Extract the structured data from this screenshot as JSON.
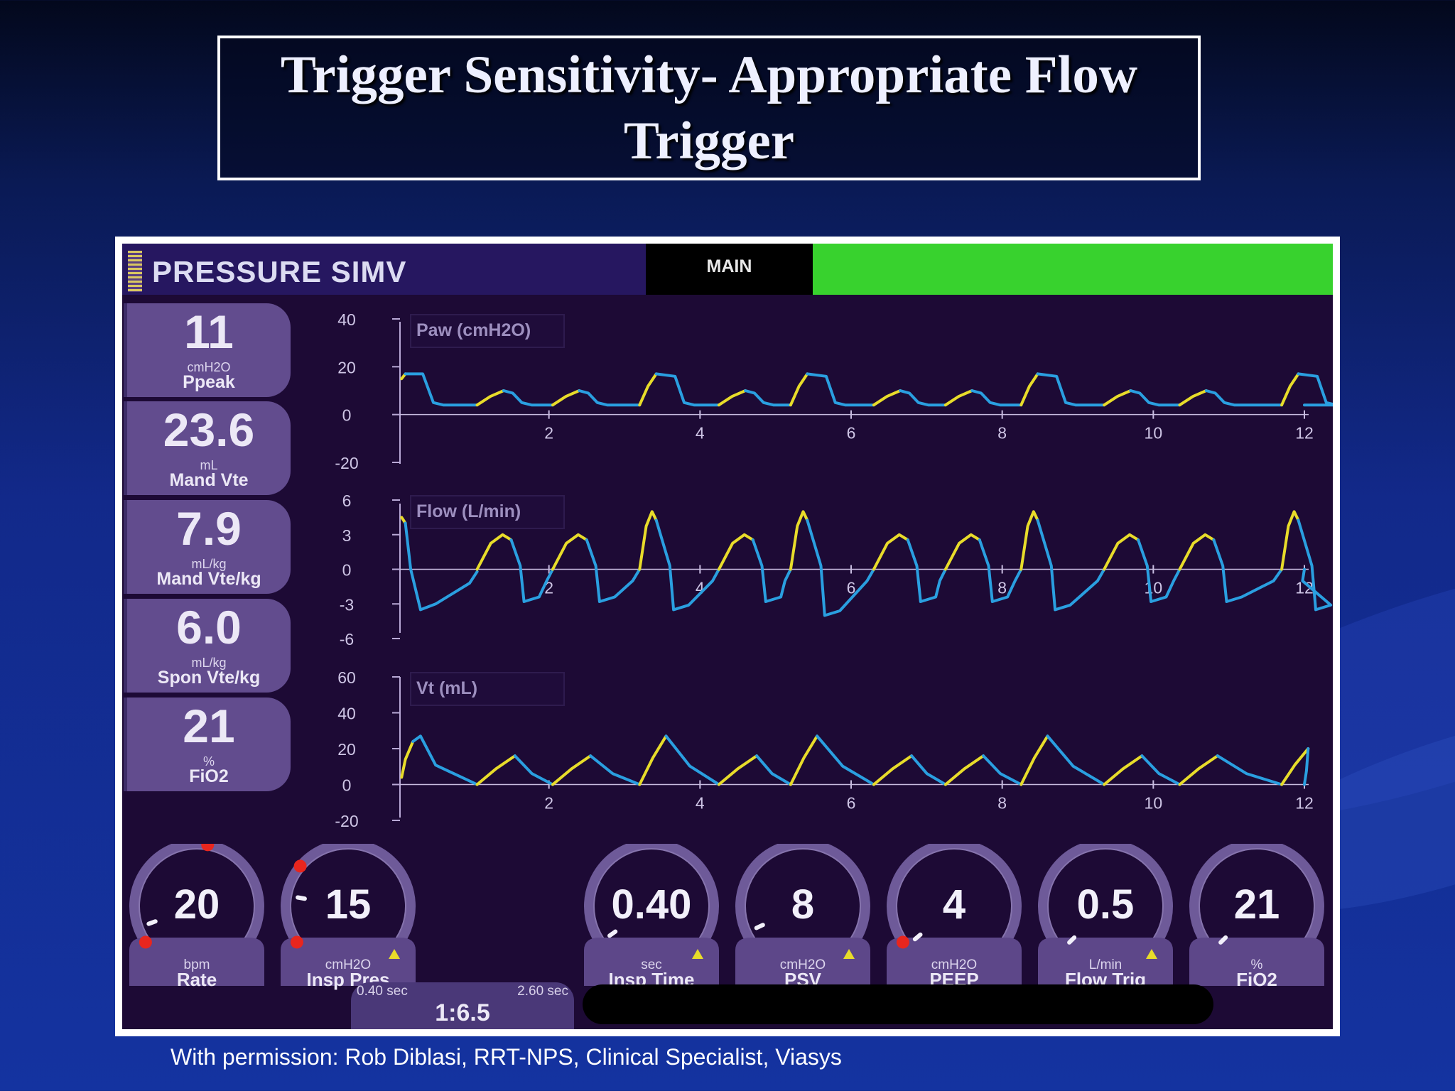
{
  "slide": {
    "title": "Trigger Sensitivity- Appropriate Flow Trigger",
    "credit": "With permission: Rob Diblasi, RRT-NPS, Clinical Specialist, Viasys"
  },
  "ventilator": {
    "mode": "PRESSURE SIMV",
    "main_tab": "MAIN",
    "colors": {
      "background": "#1d0a35",
      "tile": "#624c8e",
      "alarm_bar": "#38d22e",
      "trace_mandatory_blue": "#2a9fe0",
      "trace_inspiratory_yellow": "#e8dc2a",
      "dial_marker_red": "#e8261e"
    },
    "monitored": [
      {
        "value": "11",
        "unit": "cmH2O",
        "name": "Ppeak"
      },
      {
        "value": "23.6",
        "unit": "mL",
        "name": "Mand Vte"
      },
      {
        "value": "7.9",
        "unit": "mL/kg",
        "name": "Mand Vte/kg"
      },
      {
        "value": "6.0",
        "unit": "mL/kg",
        "name": "Spon Vte/kg"
      },
      {
        "value": "21",
        "unit": "%",
        "name": "FiO2"
      }
    ],
    "controls": [
      {
        "value": "20",
        "unit": "bpm",
        "name": "Rate",
        "alert_icon": false,
        "icon": "dial-knob-icon"
      },
      {
        "value": "15",
        "unit": "cmH2O",
        "name": "Insp Pres",
        "alert_icon": true,
        "icon": "dial-knob-icon"
      },
      {
        "value": "0.40",
        "unit": "sec",
        "name": "Insp Time",
        "alert_icon": true,
        "icon": "dial-knob-icon"
      },
      {
        "value": "8",
        "unit": "cmH2O",
        "name": "PSV",
        "alert_icon": true,
        "icon": "dial-knob-icon"
      },
      {
        "value": "4",
        "unit": "cmH2O",
        "name": "PEEP",
        "alert_icon": false,
        "icon": "dial-knob-icon"
      },
      {
        "value": "0.5",
        "unit": "L/min",
        "name": "Flow Trig",
        "alert_icon": true,
        "icon": "dial-knob-icon"
      },
      {
        "value": "21",
        "unit": "%",
        "name": "FiO2",
        "alert_icon": false,
        "icon": "dial-knob-icon"
      }
    ],
    "ie_ratio": {
      "min": "0.40 sec",
      "max": "2.60 sec",
      "value": "1:6.5"
    }
  },
  "chart_data": [
    {
      "type": "line",
      "title": "Paw (cmH2O)",
      "y_ticks": [
        "40",
        "20",
        "0",
        "-20"
      ],
      "ylim": [
        -20,
        40
      ],
      "x_ticks": [
        "2",
        "4",
        "6",
        "8",
        "10",
        "12"
      ],
      "xlim": [
        0,
        12
      ],
      "baseline": 4,
      "breaths": [
        {
          "t": 0.05,
          "type": "mand",
          "peak": 17
        },
        {
          "t": 1.05,
          "type": "spon",
          "peak": 10
        },
        {
          "t": 2.05,
          "type": "spon",
          "peak": 10
        },
        {
          "t": 3.2,
          "type": "mand",
          "peak": 17
        },
        {
          "t": 4.25,
          "type": "spon",
          "peak": 10
        },
        {
          "t": 5.2,
          "type": "mand",
          "peak": 17
        },
        {
          "t": 6.3,
          "type": "spon",
          "peak": 10
        },
        {
          "t": 7.25,
          "type": "spon",
          "peak": 10
        },
        {
          "t": 8.25,
          "type": "mand",
          "peak": 17
        },
        {
          "t": 9.35,
          "type": "spon",
          "peak": 10
        },
        {
          "t": 10.35,
          "type": "spon",
          "peak": 10
        },
        {
          "t": 11.7,
          "type": "mand",
          "peak": 17
        }
      ]
    },
    {
      "type": "line",
      "title": "Flow (L/min)",
      "y_ticks": [
        "6",
        "3",
        "0",
        "-3",
        "-6"
      ],
      "ylim": [
        -6,
        6
      ],
      "x_ticks": [
        "2",
        "4",
        "6",
        "8",
        "10",
        "12"
      ],
      "xlim": [
        0,
        12
      ],
      "baseline": 0,
      "breaths": [
        {
          "t": 0.05,
          "type": "mand",
          "peak": 5,
          "trough": -3.5
        },
        {
          "t": 1.05,
          "type": "spon",
          "peak": 3,
          "trough": -2.8
        },
        {
          "t": 2.05,
          "type": "spon",
          "peak": 3,
          "trough": -2.8
        },
        {
          "t": 3.2,
          "type": "mand",
          "peak": 5,
          "trough": -3.5
        },
        {
          "t": 4.25,
          "type": "spon",
          "peak": 3,
          "trough": -2.8
        },
        {
          "t": 5.2,
          "type": "mand",
          "peak": 5,
          "trough": -4.0
        },
        {
          "t": 6.3,
          "type": "spon",
          "peak": 3,
          "trough": -2.8
        },
        {
          "t": 7.25,
          "type": "spon",
          "peak": 3,
          "trough": -2.8
        },
        {
          "t": 8.25,
          "type": "mand",
          "peak": 5,
          "trough": -3.5
        },
        {
          "t": 9.35,
          "type": "spon",
          "peak": 3,
          "trough": -2.8
        },
        {
          "t": 10.35,
          "type": "spon",
          "peak": 3,
          "trough": -2.8
        },
        {
          "t": 11.7,
          "type": "mand",
          "peak": 5,
          "trough": -3.5
        }
      ]
    },
    {
      "type": "line",
      "title": "Vt (mL)",
      "y_ticks": [
        "60",
        "40",
        "20",
        "0",
        "-20"
      ],
      "ylim": [
        -20,
        60
      ],
      "x_ticks": [
        "2",
        "4",
        "6",
        "8",
        "10",
        "12"
      ],
      "xlim": [
        0,
        12
      ],
      "baseline": 0,
      "breaths": [
        {
          "t": 0.05,
          "type": "mand",
          "peak": 27
        },
        {
          "t": 1.05,
          "type": "spon",
          "peak": 16
        },
        {
          "t": 2.05,
          "type": "spon",
          "peak": 16
        },
        {
          "t": 3.2,
          "type": "mand",
          "peak": 27
        },
        {
          "t": 4.25,
          "type": "spon",
          "peak": 16
        },
        {
          "t": 5.2,
          "type": "mand",
          "peak": 27
        },
        {
          "t": 6.3,
          "type": "spon",
          "peak": 16
        },
        {
          "t": 7.25,
          "type": "spon",
          "peak": 16
        },
        {
          "t": 8.25,
          "type": "mand",
          "peak": 27
        },
        {
          "t": 9.35,
          "type": "spon",
          "peak": 16
        },
        {
          "t": 10.35,
          "type": "spon",
          "peak": 16
        },
        {
          "t": 11.7,
          "type": "mand",
          "peak": 20
        }
      ]
    }
  ]
}
